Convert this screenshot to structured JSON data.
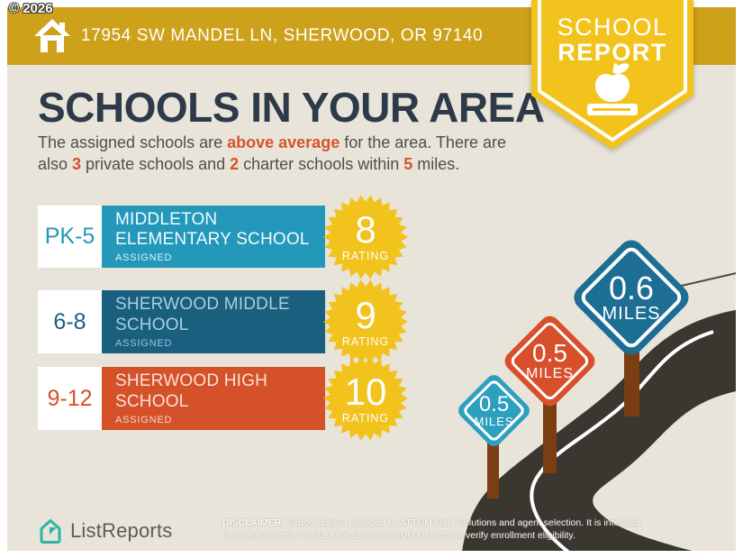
{
  "copyright": "© 2026",
  "header": {
    "address": "17954 SW MANDEL LN, SHERWOOD, OR 97140"
  },
  "ribbon": {
    "line1": "SCHOOL",
    "line2": "REPORT"
  },
  "main": {
    "title": "SCHOOLS IN YOUR AREA",
    "intro_segments": [
      {
        "t": "The assigned schools are "
      },
      {
        "t": "above average",
        "accent": true
      },
      {
        "t": " for the area. There are also "
      },
      {
        "t": "3",
        "accent": true
      },
      {
        "t": " private schools and "
      },
      {
        "t": "2",
        "accent": true
      },
      {
        "t": " charter schools within "
      },
      {
        "t": "5",
        "accent": true
      },
      {
        "t": " miles."
      }
    ]
  },
  "schools": [
    {
      "grades": "PK-5",
      "name": "MIDDLETON\nELEMENTARY SCHOOL",
      "status": "ASSIGNED",
      "rating": "8",
      "rating_label": "RATING",
      "bar_color": "#2498BA",
      "text_color": "#EFFBFD"
    },
    {
      "grades": "6-8",
      "name": "SHERWOOD MIDDLE\nSCHOOL",
      "status": "ASSIGNED",
      "rating": "9",
      "rating_label": "RATING",
      "bar_color": "#1B5F7F",
      "text_color": "#A5D0E2"
    },
    {
      "grades": "9-12",
      "name": "SHERWOOD HIGH\nSCHOOL",
      "status": "ASSIGNED",
      "rating": "10",
      "rating_label": "RATING",
      "bar_color": "#D5512A",
      "text_color": "#F8E2D8"
    }
  ],
  "signs": [
    {
      "value": "0.6",
      "unit": "MILES",
      "color": "#1D6E94"
    },
    {
      "value": "0.5",
      "unit": "MILES",
      "color": "#D8502B"
    },
    {
      "value": "0.5",
      "unit": "MILES",
      "color": "#2D9FBF"
    }
  ],
  "footer": {
    "brand": "ListReports",
    "disclaimer_label": "DISCLAIMER:",
    "disclaimer_text": " School data is provided by ATTOM Data Solutions and agent selection. It is intended for reference only. Contact the school or district directly to verify enrollment eligibility."
  },
  "colors": {
    "header_gold": "#CEA11B",
    "ribbon_yellow": "#F2C31D",
    "background": "#E9E4D9",
    "title_navy": "#2C3A49",
    "body_text": "#4E4E4E",
    "accent": "#D5532C",
    "rating_yellow": "#F2C31D",
    "road": "#3A3731",
    "road_line": "#ffffff",
    "post_brown": "#7B3E12",
    "logo_teal": "#2CB5A5"
  }
}
